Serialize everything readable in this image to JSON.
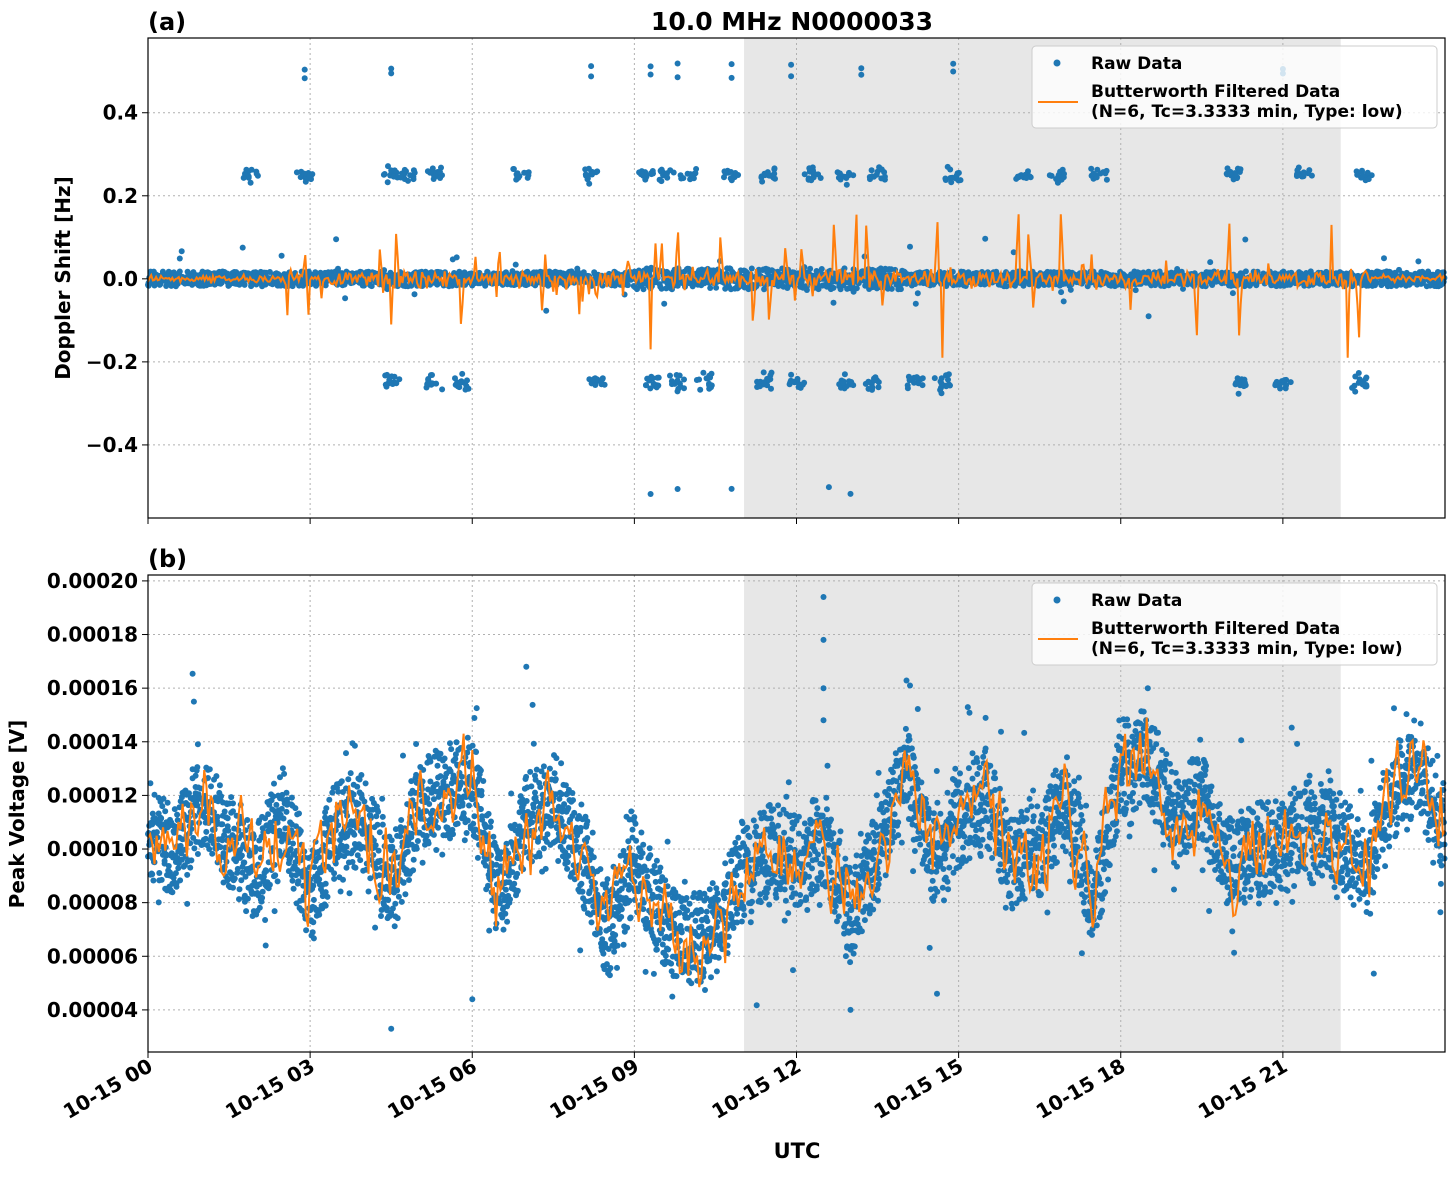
{
  "chart_data": [
    {
      "type": "scatter+line",
      "panel_label": "(a)",
      "title": "10.0 MHz N0000033",
      "xlabel": "",
      "ylabel": "Doppler Shift [Hz]",
      "xlim_hours": [
        0,
        24
      ],
      "ylim": [
        -0.576,
        0.58
      ],
      "yticks": [
        0.4,
        0.2,
        0.0,
        -0.2,
        -0.4
      ],
      "ytick_labels": [
        "0.4",
        "0.2",
        "0.0",
        "−0.2",
        "−0.4"
      ],
      "shaded_region_hours": [
        11.03,
        22.07
      ],
      "grid": true,
      "legend": {
        "placement": "top-right",
        "entries": [
          "Raw Data",
          "Butterworth Filtered Data\n(N=6, Tc=3.3333 min, Type: low)"
        ],
        "line1": "Butterworth Filtered Data",
        "line2": "(N=6, Tc=3.3333 min, Type: low)",
        "raw_label": "Raw Data"
      },
      "raw_baseline": 0.0,
      "raw_noise_halfwidth": 0.018,
      "raw_outlier_clusters_pos025_hours": [
        1.9,
        2.9,
        4.5,
        4.8,
        5.3,
        6.9,
        8.2,
        9.2,
        9.6,
        10.0,
        10.8,
        11.5,
        12.3,
        12.9,
        13.5,
        14.9,
        16.2,
        16.8,
        17.6,
        20.1,
        21.4,
        22.5
      ],
      "raw_outlier_clusters_neg025_hours": [
        4.5,
        5.3,
        5.8,
        8.3,
        9.3,
        9.8,
        10.3,
        11.4,
        12.0,
        12.9,
        13.4,
        14.2,
        14.7,
        20.2,
        21.0,
        22.4
      ],
      "raw_outliers_pos05_hours": [
        2.9,
        4.5,
        8.2,
        9.3,
        9.8,
        10.8,
        11.9,
        13.2,
        14.9,
        21.0
      ],
      "raw_outliers_neg05_hours": [
        9.3,
        9.8,
        10.8,
        12.6,
        13.0
      ],
      "filtered_spikes": [
        [
          2.9,
          0.09
        ],
        [
          4.3,
          0.11
        ],
        [
          4.5,
          -0.11
        ],
        [
          4.6,
          0.17
        ],
        [
          5.8,
          -0.19
        ],
        [
          6.5,
          0.1
        ],
        [
          8.3,
          -0.07
        ],
        [
          8.9,
          0.06
        ],
        [
          9.3,
          -0.17
        ],
        [
          9.5,
          0.12
        ],
        [
          9.8,
          0.17
        ],
        [
          10.6,
          0.15
        ],
        [
          11.2,
          -0.16
        ],
        [
          11.5,
          -0.15
        ],
        [
          11.8,
          0.12
        ],
        [
          12.1,
          0.1
        ],
        [
          12.7,
          0.2
        ],
        [
          13.1,
          0.23
        ],
        [
          13.3,
          0.22
        ],
        [
          13.6,
          -0.1
        ],
        [
          14.6,
          0.21
        ],
        [
          14.7,
          -0.19
        ],
        [
          16.1,
          0.23
        ],
        [
          16.3,
          0.16
        ],
        [
          16.9,
          0.24
        ],
        [
          17.3,
          0.06
        ],
        [
          19.4,
          -0.2
        ],
        [
          20.0,
          0.2
        ],
        [
          20.2,
          -0.2
        ],
        [
          21.9,
          0.13
        ],
        [
          22.2,
          -0.19
        ],
        [
          22.4,
          -0.21
        ]
      ]
    },
    {
      "type": "scatter+line",
      "panel_label": "(b)",
      "xlabel": "UTC",
      "ylabel": "Peak Voltage [V]",
      "xlim_hours": [
        0,
        24
      ],
      "ylim": [
        2.43e-05,
        0.0002022
      ],
      "yticks": [
        0.0002,
        0.00018,
        0.00016,
        0.00014,
        0.00012,
        0.0001,
        8e-05,
        6e-05,
        4e-05
      ],
      "ytick_labels": [
        "0.00020",
        "0.00018",
        "0.00016",
        "0.00014",
        "0.00012",
        "0.00010",
        "0.00008",
        "0.00006",
        "0.00004"
      ],
      "xticks_hours": [
        0,
        3,
        6,
        9,
        12,
        15,
        18,
        21
      ],
      "xtick_labels": [
        "10-15 00",
        "10-15 03",
        "10-15 06",
        "10-15 09",
        "10-15 12",
        "10-15 15",
        "10-15 18",
        "10-15 21"
      ],
      "shaded_region_hours": [
        11.03,
        22.07
      ],
      "grid": true,
      "legend": {
        "placement": "top-right",
        "raw_label": "Raw Data",
        "line1": "Butterworth Filtered Data",
        "line2": "(N=6, Tc=3.3333 min, Type: low)"
      },
      "filtered_hours_step": 0.5,
      "filtered_values": [
        0.000105,
        0.0001,
        0.000118,
        0.0001,
        9e-05,
        0.000115,
        8e-05,
        0.00011,
        0.00011,
        8.5e-05,
        0.000115,
        0.00012,
        0.000125,
        8e-05,
        0.00011,
        0.00012,
        0.0001,
        7e-05,
        9.5e-05,
        7.5e-05,
        6.5e-05,
        7e-05,
        9e-05,
        0.0001,
        9.5e-05,
        0.000105,
        7.5e-05,
        0.0001,
        0.00013,
        9.5e-05,
        0.00011,
        0.00012,
        9.5e-05,
        0.0001,
        0.00012,
        8e-05,
        0.00013,
        0.000135,
        0.00011,
        0.00012,
        9.5e-05,
        0.0001,
        0.0001,
        0.00011,
        0.000105,
        9e-05,
        0.00012,
        0.00013,
        0.000105
      ],
      "raw_spread_halfwidth": 1.8e-05,
      "raw_outliers": [
        [
          0.85,
          0.000155
        ],
        [
          4.5,
          3.3e-05
        ],
        [
          6.0,
          4.4e-05
        ],
        [
          7.0,
          0.000168
        ],
        [
          12.5,
          0.000194
        ],
        [
          12.5,
          0.000178
        ],
        [
          12.5,
          0.00016
        ],
        [
          12.5,
          0.000148
        ],
        [
          13.0,
          4e-05
        ],
        [
          14.6,
          4.6e-05
        ],
        [
          14.1,
          0.000161
        ],
        [
          18.5,
          0.00016
        ]
      ]
    }
  ],
  "colors": {
    "raw": "#1f77b4",
    "filtered": "#ff7f0e",
    "shade": "#e7e7e7"
  }
}
